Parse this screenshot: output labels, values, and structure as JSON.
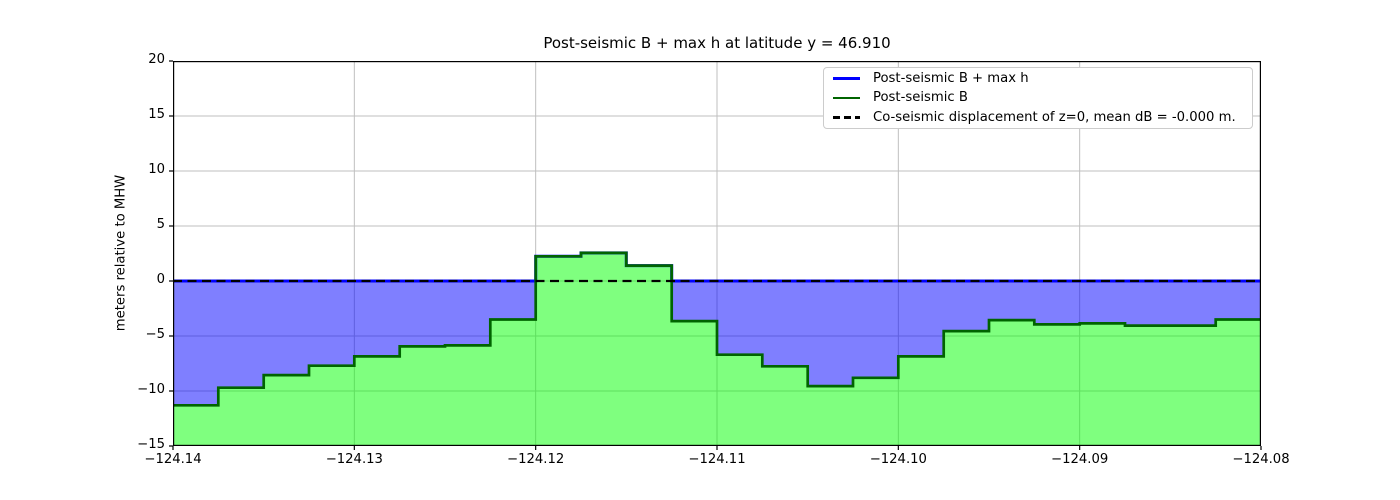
{
  "figure": {
    "title": "Post-seismic B + max h at latitude y = 46.910",
    "ylabel": "meters relative to MHW",
    "background": "#ffffff"
  },
  "legend": {
    "position": "upper right",
    "entries": [
      {
        "label": "Post-seismic B + max h",
        "color": "#0000ff",
        "style": "solid"
      },
      {
        "label": "Post-seismic B",
        "color": "#006400",
        "style": "solid"
      },
      {
        "label": "Co-seismic displacement of z=0, mean dB = -0.000 m.",
        "color": "#000000",
        "style": "dashed"
      }
    ]
  },
  "chart_data": {
    "type": "area",
    "title": "Post-seismic B + max h at latitude y = 46.910",
    "xlabel": "",
    "ylabel": "meters relative to MHW",
    "xlim": [
      -124.14,
      -124.08
    ],
    "ylim": [
      -15,
      20
    ],
    "grid": true,
    "legend_position": "upper right",
    "x_ticks": {
      "values": [
        -124.14,
        -124.13,
        -124.12,
        -124.11,
        -124.1,
        -124.09,
        -124.08
      ],
      "labels": [
        "−124.14",
        "−124.13",
        "−124.12",
        "−124.11",
        "−124.10",
        "−124.09",
        "−124.08"
      ]
    },
    "y_ticks": {
      "values": [
        20,
        15,
        10,
        5,
        0,
        -5,
        -10,
        -15
      ],
      "labels": [
        "20",
        "15",
        "10",
        "5",
        "0",
        "−5",
        "−10",
        "−15"
      ]
    },
    "step_start_x": -124.14,
    "step_width_x": 0.0025,
    "series": [
      {
        "name": "Post-seismic B + max h",
        "type": "step-line",
        "color": "#0000ff",
        "rule": "max(B, 0)",
        "values": [
          0,
          0,
          0,
          0,
          0,
          0,
          0,
          0,
          2.25,
          2.55,
          1.4,
          0,
          0,
          0,
          0,
          0,
          0,
          0,
          0,
          0,
          0,
          0,
          0,
          0
        ]
      },
      {
        "name": "Post-seismic B",
        "type": "step-fill",
        "line_color": "#006400",
        "fill_color": "#00ff00",
        "values": [
          -11.3,
          -9.7,
          -8.55,
          -7.7,
          -6.85,
          -5.95,
          -5.85,
          -3.5,
          2.25,
          2.55,
          1.4,
          -3.65,
          -6.7,
          -7.75,
          -9.55,
          -8.8,
          -6.85,
          -4.55,
          -3.55,
          -3.95,
          -3.85,
          -4.05,
          -4.05,
          -3.5
        ]
      },
      {
        "name": "Co-seismic displacement of z=0",
        "type": "hline-dashed",
        "y": 0,
        "color": "#000000"
      }
    ],
    "fill_opacity": 0.5,
    "blue_fill_color": "#0000ff"
  },
  "colors": {
    "grid": "#bfbfbf",
    "axes_frame": "#000000",
    "text": "#000000",
    "legend_border": "#cccccc"
  }
}
